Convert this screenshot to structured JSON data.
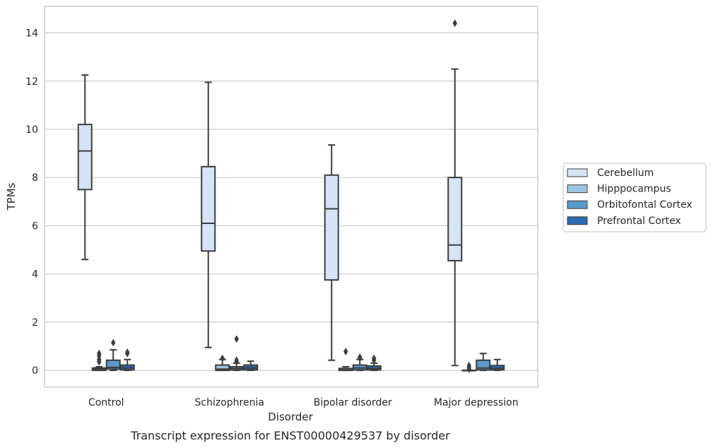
{
  "caption": "Transcript expression for ENST00000429537 by disorder",
  "chart_data": {
    "type": "boxplot",
    "xlabel": "Disorder",
    "ylabel": "TPMs",
    "ylim": [
      -0.7,
      15.1
    ],
    "yticks": [
      0,
      2,
      4,
      6,
      8,
      10,
      12,
      14
    ],
    "grid": true,
    "legend_position": "right",
    "categories": [
      "Control",
      "Schizophrenia",
      "Bipolar disorder",
      "Major depression"
    ],
    "series": [
      {
        "name": "Cerebellum",
        "color": "#d6e4f3",
        "boxes": [
          {
            "whislo": 4.6,
            "q1": 7.5,
            "med": 9.1,
            "q3": 10.2,
            "whishi": 12.25,
            "fliers": []
          },
          {
            "whislo": 0.95,
            "q1": 4.95,
            "med": 6.1,
            "q3": 8.45,
            "whishi": 11.95,
            "fliers": []
          },
          {
            "whislo": 0.42,
            "q1": 3.75,
            "med": 6.7,
            "q3": 8.1,
            "whishi": 9.35,
            "fliers": []
          },
          {
            "whislo": 0.2,
            "q1": 4.55,
            "med": 5.2,
            "q3": 8.0,
            "whishi": 12.5,
            "fliers": [
              14.4
            ]
          }
        ]
      },
      {
        "name": "Hipppocampus",
        "color": "#9ec5e0",
        "boxes": [
          {
            "whislo": 0.0,
            "q1": 0.0,
            "med": 0.05,
            "q3": 0.1,
            "whishi": 0.15,
            "fliers": [
              0.35,
              0.45,
              0.6,
              0.7
            ]
          },
          {
            "whislo": 0.0,
            "q1": 0.0,
            "med": 0.05,
            "q3": 0.22,
            "whishi": 0.45,
            "fliers": [
              0.5
            ]
          },
          {
            "whislo": 0.0,
            "q1": 0.0,
            "med": 0.02,
            "q3": 0.08,
            "whishi": 0.15,
            "fliers": [
              0.78
            ]
          },
          {
            "whislo": 0.0,
            "q1": 0.0,
            "med": 0.0,
            "q3": 0.0,
            "whishi": 0.0,
            "fliers": [
              0.05,
              0.12,
              0.2
            ]
          }
        ]
      },
      {
        "name": "Orbitofontal Cortex",
        "color": "#5a9ac9",
        "boxes": [
          {
            "whislo": 0.0,
            "q1": 0.05,
            "med": 0.12,
            "q3": 0.42,
            "whishi": 0.85,
            "fliers": [
              1.15
            ]
          },
          {
            "whislo": 0.0,
            "q1": 0.02,
            "med": 0.08,
            "q3": 0.15,
            "whishi": 0.3,
            "fliers": [
              0.35,
              0.42,
              1.3
            ]
          },
          {
            "whislo": 0.0,
            "q1": 0.02,
            "med": 0.1,
            "q3": 0.22,
            "whishi": 0.45,
            "fliers": [
              0.5,
              0.55
            ]
          },
          {
            "whislo": 0.0,
            "q1": 0.02,
            "med": 0.1,
            "q3": 0.42,
            "whishi": 0.7,
            "fliers": []
          }
        ]
      },
      {
        "name": "Prefrontal Cortex",
        "color": "#2e6aac",
        "boxes": [
          {
            "whislo": 0.0,
            "q1": 0.02,
            "med": 0.1,
            "q3": 0.22,
            "whishi": 0.45,
            "fliers": [
              0.7,
              0.75
            ]
          },
          {
            "whislo": 0.0,
            "q1": 0.02,
            "med": 0.1,
            "q3": 0.22,
            "whishi": 0.38,
            "fliers": []
          },
          {
            "whislo": 0.0,
            "q1": 0.02,
            "med": 0.08,
            "q3": 0.18,
            "whishi": 0.3,
            "fliers": [
              0.42,
              0.5
            ]
          },
          {
            "whislo": 0.0,
            "q1": 0.02,
            "med": 0.08,
            "q3": 0.2,
            "whishi": 0.45,
            "fliers": []
          }
        ]
      }
    ]
  }
}
